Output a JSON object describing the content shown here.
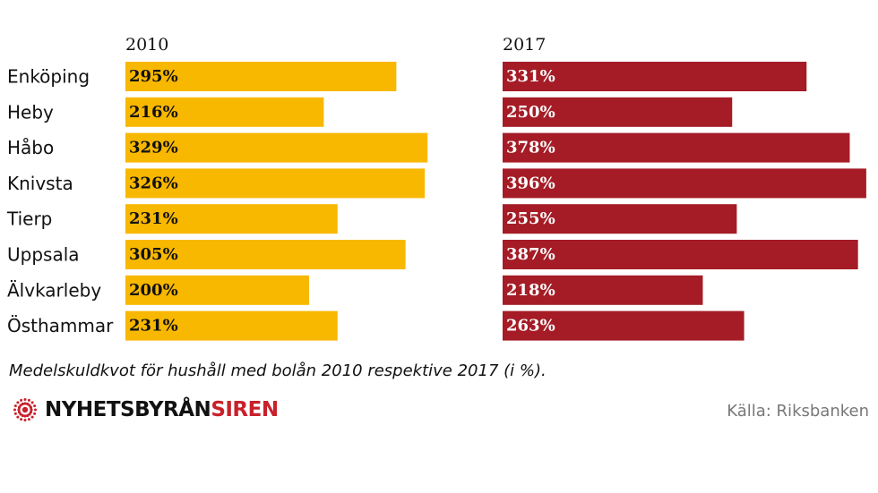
{
  "chart_data": {
    "type": "bar",
    "orientation": "horizontal",
    "categories": [
      "Enköping",
      "Heby",
      "Håbo",
      "Knivsta",
      "Tierp",
      "Uppsala",
      "Älvkarleby",
      "Östhammar"
    ],
    "series": [
      {
        "name": "2010",
        "color": "#F8B800",
        "value_labels": [
          "295%",
          "216%",
          "329%",
          "326%",
          "231%",
          "305%",
          "200%",
          "231%"
        ],
        "values": [
          295,
          216,
          329,
          326,
          231,
          305,
          200,
          231
        ]
      },
      {
        "name": "2017",
        "color": "#A51C26",
        "value_labels": [
          "331%",
          "250%",
          "378%",
          "396%",
          "255%",
          "387%",
          "218%",
          "263%"
        ],
        "values": [
          331,
          250,
          378,
          396,
          255,
          387,
          218,
          263
        ]
      }
    ],
    "unit": "%",
    "caption": "Medelskuldkvot för hushåll med bolån 2010 respektive 2017 (i %).",
    "legend": "none"
  },
  "branding": {
    "logo_main": "NYHETSBYRÅN",
    "logo_accent": "SIREN",
    "logo_icon": "siren-burst-icon",
    "accent_color": "#C8212B"
  },
  "source": "Källa: Riksbanken"
}
